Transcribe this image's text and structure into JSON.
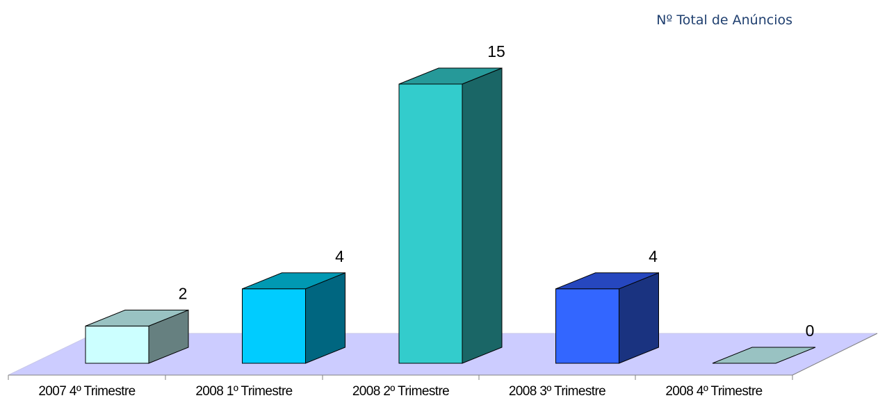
{
  "chart_data": {
    "type": "bar",
    "title": "Nº Total de Anúncios",
    "categories": [
      "2007 4º Trimestre",
      "2008 1º Trimestre",
      "2008 2º Trimestre",
      "2008 3º Trimestre",
      "2008 4º Trimestre"
    ],
    "values": [
      2,
      4,
      15,
      4,
      0
    ],
    "data_labels": [
      "2",
      "4",
      "15",
      "4",
      "0"
    ],
    "colors": {
      "front": [
        "#ccffff",
        "#00ccff",
        "#33cccc",
        "#3366ff",
        "#99c2c2"
      ],
      "side": [
        "#668080",
        "#006680",
        "#1a6666",
        "#1a3380",
        "#668080"
      ],
      "top": [
        "#99c2c2",
        "#0099b3",
        "#269999",
        "#2647bf",
        "#99c2c2"
      ],
      "floor": "#ccccff"
    },
    "ylim": [
      0,
      15
    ],
    "grid": false,
    "style": "3d-column"
  }
}
